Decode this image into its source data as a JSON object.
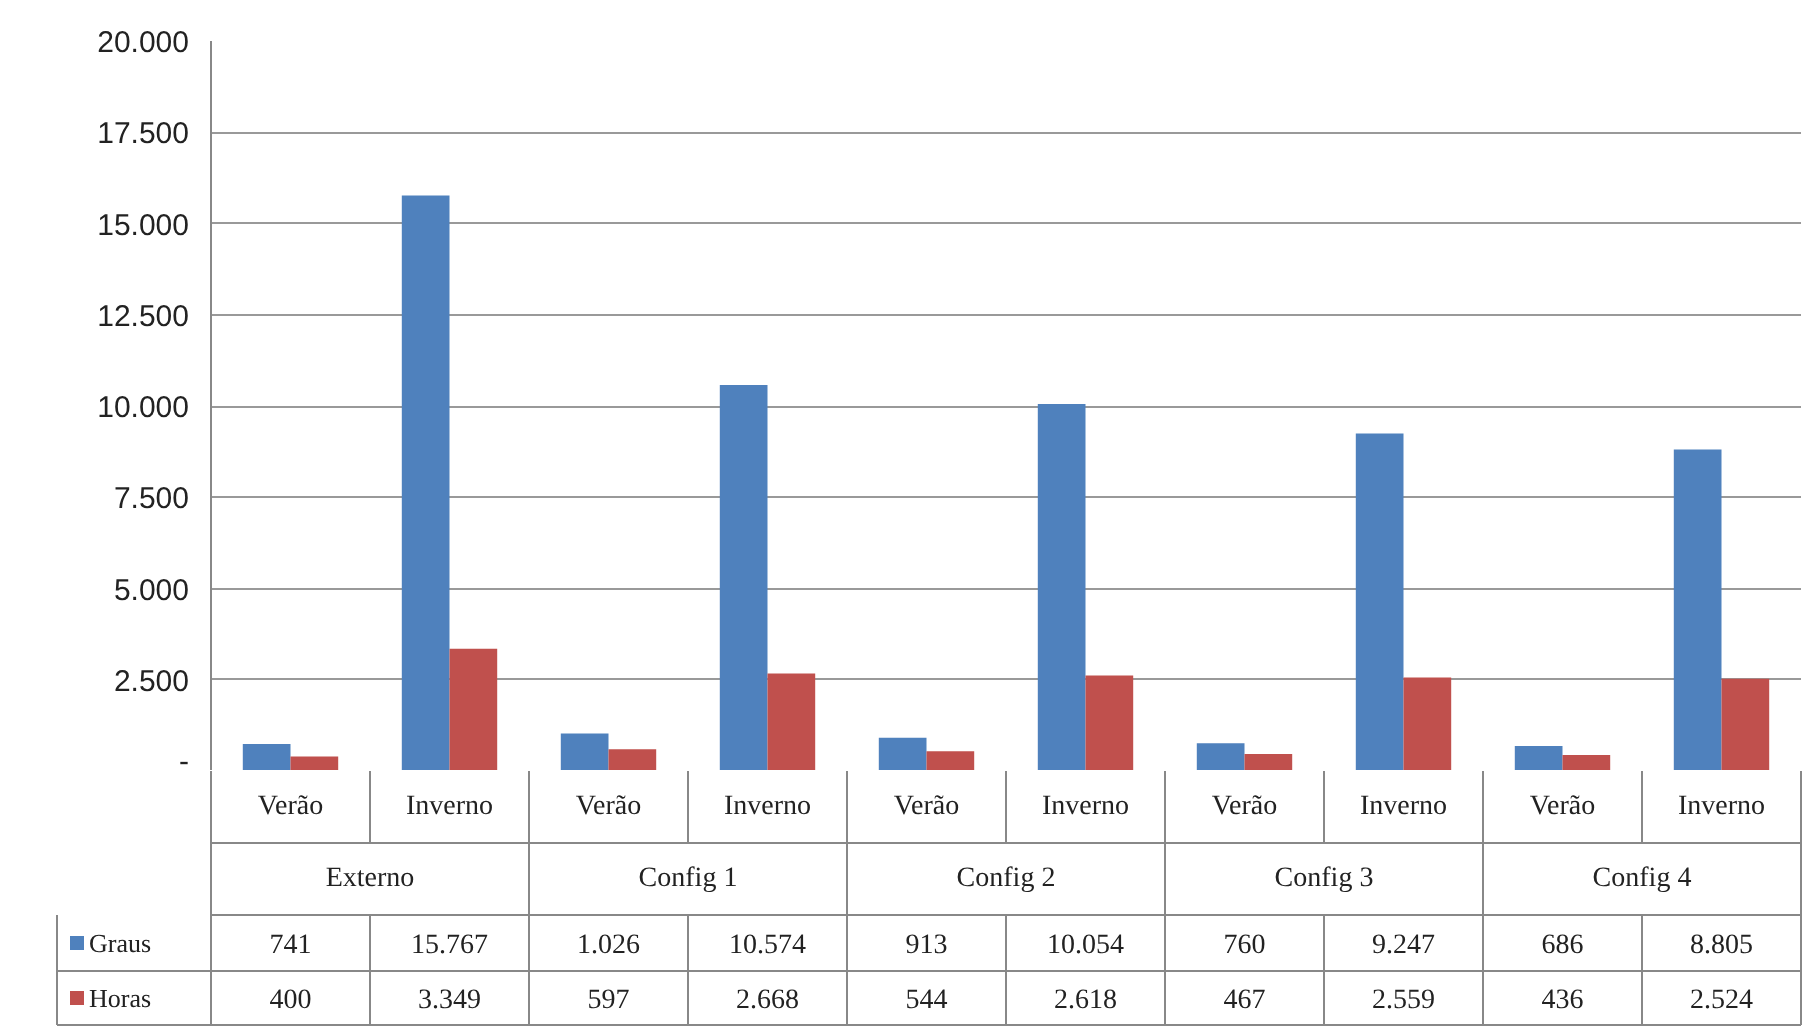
{
  "chart_data": {
    "type": "bar",
    "categories": [
      "Verão",
      "Inverno",
      "Verão",
      "Inverno",
      "Verão",
      "Inverno",
      "Verão",
      "Inverno",
      "Verão",
      "Inverno"
    ],
    "annotations": [
      "Externo",
      "Config 1",
      "Config 2",
      "Config 3",
      "Config 4"
    ],
    "series": [
      {
        "name": "Graus",
        "color": "#4f81bd",
        "values": [
          741,
          15767,
          1026,
          10574,
          913,
          10054,
          760,
          9247,
          686,
          8805
        ],
        "value_labels": [
          "741",
          "15.767",
          "1.026",
          "10.574",
          "913",
          "10.054",
          "760",
          "9.247",
          "686",
          "8.805"
        ]
      },
      {
        "name": "Horas",
        "color": "#c0504d",
        "values": [
          400,
          3349,
          597,
          2668,
          544,
          2618,
          467,
          2559,
          436,
          2524
        ],
        "value_labels": [
          "400",
          "3.349",
          "597",
          "2.668",
          "544",
          "2.618",
          "467",
          "2.559",
          "436",
          "2.524"
        ]
      }
    ],
    "ylim": [
      0,
      20000
    ],
    "yticks": [
      {
        "value": 0,
        "label": "-"
      },
      {
        "value": 2500,
        "label": "2.500"
      },
      {
        "value": 5000,
        "label": "5.000"
      },
      {
        "value": 7500,
        "label": "7.500"
      },
      {
        "value": 10000,
        "label": "10.000"
      },
      {
        "value": 12500,
        "label": "12.500"
      },
      {
        "value": 15000,
        "label": "15.000"
      },
      {
        "value": 17500,
        "label": "17.500"
      },
      {
        "value": 20000,
        "label": "20.000"
      }
    ],
    "grid": "y",
    "legend": "bottom left"
  }
}
